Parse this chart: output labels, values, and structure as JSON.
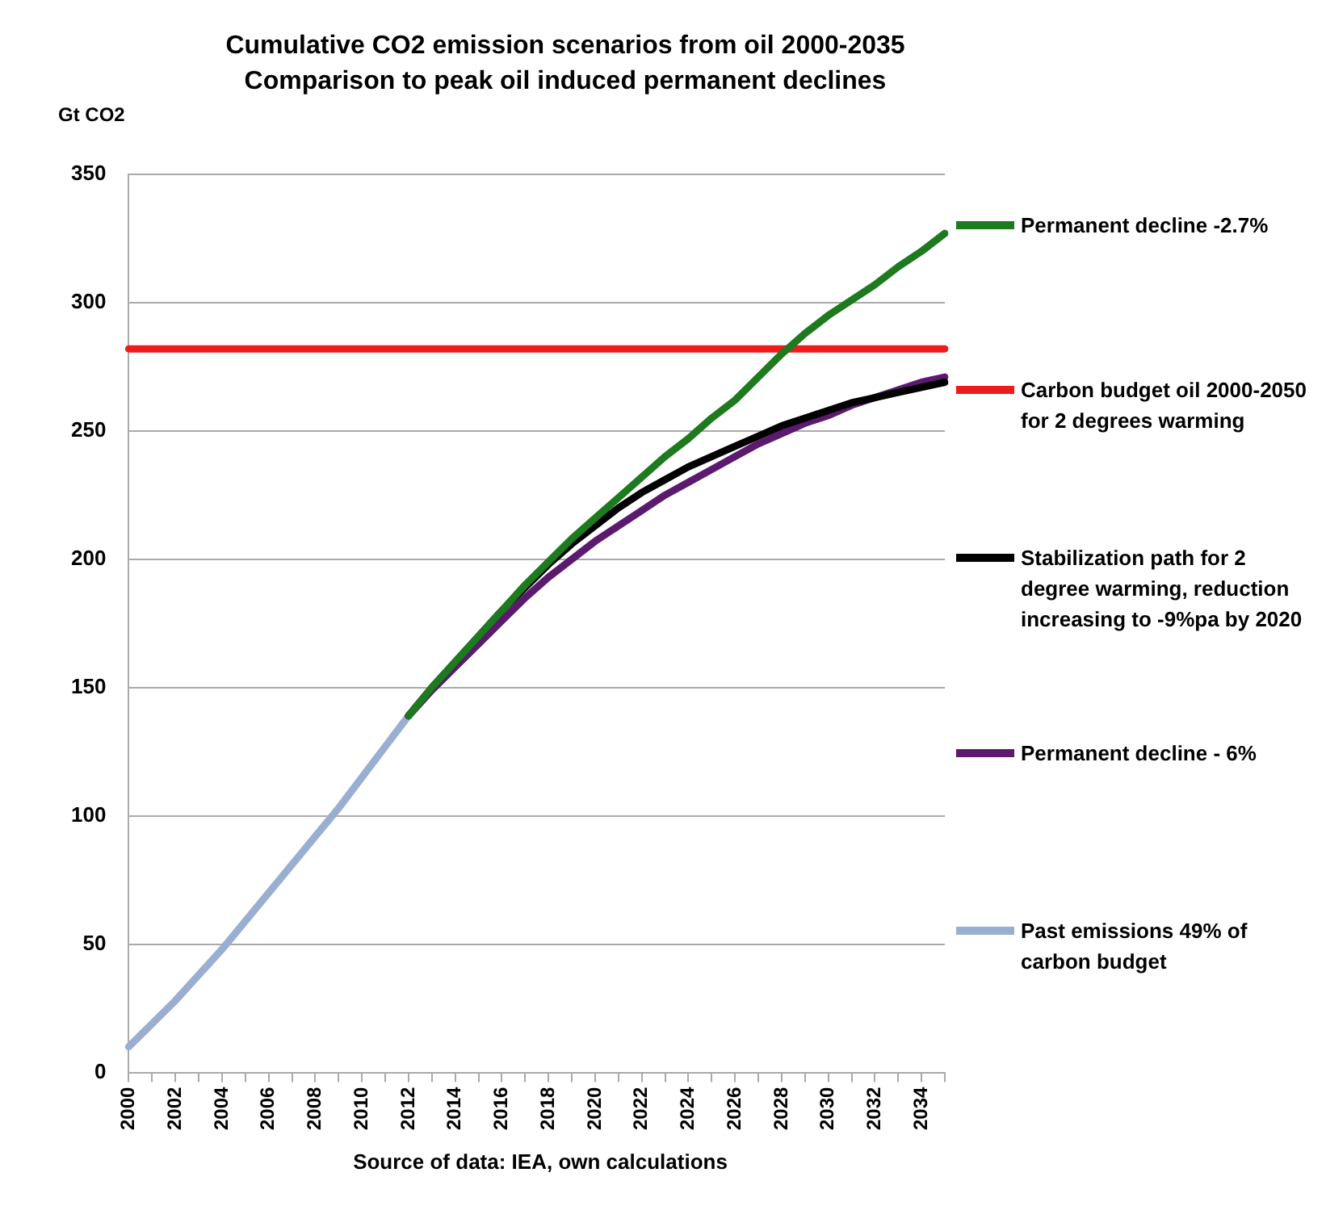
{
  "chart_data": {
    "type": "line",
    "title": "Cumulative CO2 emission scenarios from oil 2000-2035",
    "subtitle": "Comparison to peak oil induced permanent declines",
    "ylabel": "Gt CO2",
    "categories": [
      "2000",
      null,
      "2002",
      null,
      "2004",
      null,
      "2006",
      null,
      "2008",
      null,
      "2010",
      null,
      "2012",
      null,
      "2014",
      null,
      "2016",
      null,
      "2018",
      null,
      "2020",
      null,
      "2022",
      null,
      "2024",
      null,
      "2026",
      null,
      "2028",
      null,
      "2030",
      null,
      "2032",
      null,
      "2034",
      null
    ],
    "ylim": [
      0,
      350
    ],
    "yticks": [
      0,
      50,
      100,
      150,
      200,
      250,
      300,
      350
    ],
    "grid": "y",
    "legend": "right",
    "marker": "none",
    "line_style": "solid",
    "series": [
      {
        "name": "Permanent decline -2.7%",
        "color": "#1e7a1e",
        "values": [
          null,
          null,
          null,
          null,
          null,
          null,
          null,
          null,
          null,
          null,
          null,
          null,
          139,
          150,
          160,
          170,
          180,
          190,
          199,
          208,
          216,
          224,
          232,
          240,
          247,
          255,
          262,
          271,
          280,
          288,
          295,
          301,
          307,
          314,
          320,
          327
        ]
      },
      {
        "name": "Carbon budget oil 2000-2050 for 2 degrees warming",
        "color": "#ee1c1c",
        "values": [
          282,
          282,
          282,
          282,
          282,
          282,
          282,
          282,
          282,
          282,
          282,
          282,
          282,
          282,
          282,
          282,
          282,
          282,
          282,
          282,
          282,
          282,
          282,
          282,
          282,
          282,
          282,
          282,
          282,
          282,
          282,
          282,
          282,
          282,
          282,
          282
        ]
      },
      {
        "name": "Stabilization path for 2 degree warming, reduction increasing to -9%pa by 2020",
        "color": "#000000",
        "values": [
          null,
          null,
          null,
          null,
          null,
          null,
          null,
          null,
          null,
          null,
          null,
          null,
          139,
          150,
          160,
          170,
          180,
          189,
          198,
          206,
          213,
          220,
          226,
          231,
          236,
          240,
          244,
          248,
          252,
          255,
          258,
          261,
          263,
          265,
          267,
          269
        ]
      },
      {
        "name": "Permanent decline - 6%",
        "color": "#5c1a6e",
        "values": [
          null,
          null,
          null,
          null,
          null,
          null,
          null,
          null,
          null,
          null,
          null,
          null,
          139,
          149,
          158,
          167,
          176,
          185,
          193,
          200,
          207,
          213,
          219,
          225,
          230,
          235,
          240,
          245,
          249,
          253,
          256,
          260,
          263,
          266,
          269,
          271
        ]
      },
      {
        "name": "Past emissions 49% of carbon budget",
        "color": "#9aaed2",
        "values": [
          10,
          19,
          28,
          38,
          48,
          59,
          70,
          81,
          92,
          103,
          115,
          127,
          139,
          null,
          null,
          null,
          null,
          null,
          null,
          null,
          null,
          null,
          null,
          null,
          null,
          null,
          null,
          null,
          null,
          null,
          null,
          null,
          null,
          null,
          null,
          null
        ]
      }
    ],
    "annotations": [
      "Source of data: IEA, own calculations"
    ]
  }
}
